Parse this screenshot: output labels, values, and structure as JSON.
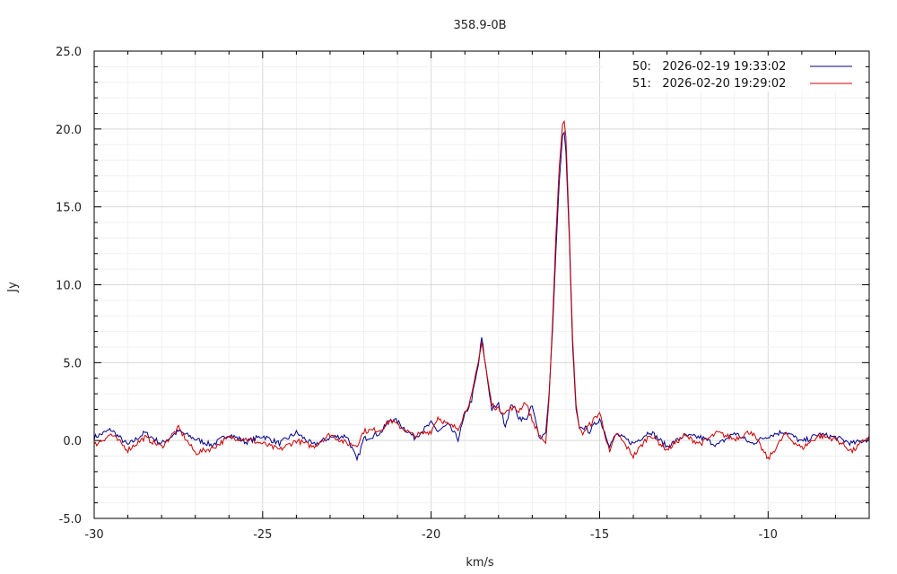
{
  "chart_data": {
    "type": "line",
    "title": "358.9-0B",
    "xlabel": "km/s",
    "ylabel": "Jy",
    "xlim": [
      -30,
      -7
    ],
    "ylim": [
      -5,
      25
    ],
    "x_ticks": [
      -30,
      -25,
      -20,
      -15,
      -10
    ],
    "x_tick_labels": [
      "-30",
      "-25",
      "-20",
      "-15",
      "-10"
    ],
    "y_ticks": [
      -5,
      0,
      5,
      10,
      15,
      20,
      25
    ],
    "y_tick_labels": [
      "-5.0",
      "0.0",
      "5.0",
      "10.0",
      "15.0",
      "20.0",
      "25.0"
    ],
    "grid": true,
    "legend_position": "top-right",
    "series": [
      {
        "name": "50:   2026-02-19 19:33:02",
        "color": "#00008b",
        "x": [
          -30.0,
          -29.5,
          -29.0,
          -28.5,
          -28.0,
          -27.5,
          -27.0,
          -26.5,
          -26.0,
          -25.5,
          -25.0,
          -24.5,
          -24.0,
          -23.5,
          -23.0,
          -22.5,
          -22.2,
          -22.0,
          -21.5,
          -21.2,
          -21.0,
          -20.5,
          -20.0,
          -19.8,
          -19.5,
          -19.2,
          -19.0,
          -18.8,
          -18.6,
          -18.5,
          -18.3,
          -18.2,
          -18.0,
          -17.8,
          -17.6,
          -17.4,
          -17.2,
          -17.0,
          -16.8,
          -16.6,
          -16.5,
          -16.4,
          -16.3,
          -16.2,
          -16.1,
          -16.05,
          -16.0,
          -15.9,
          -15.8,
          -15.7,
          -15.6,
          -15.5,
          -15.3,
          -15.0,
          -14.7,
          -14.5,
          -14.0,
          -13.5,
          -13.0,
          -12.5,
          -12.0,
          -11.5,
          -11.0,
          -10.5,
          -10.0,
          -9.5,
          -9.0,
          -8.5,
          -8.0,
          -7.5,
          -7.0
        ],
        "y": [
          0.2,
          0.7,
          -0.3,
          0.5,
          -0.2,
          0.6,
          0.1,
          -0.3,
          0.4,
          -0.1,
          0.3,
          -0.2,
          0.5,
          -0.3,
          0.2,
          0.3,
          -1.3,
          0.1,
          0.5,
          1.4,
          1.2,
          0.2,
          1.1,
          0.6,
          1.0,
          0.1,
          1.6,
          2.6,
          4.8,
          6.6,
          3.5,
          2.0,
          2.3,
          1.0,
          2.4,
          1.5,
          1.3,
          2.2,
          0.2,
          0.5,
          3.0,
          7.0,
          12.0,
          16.5,
          19.6,
          19.8,
          18.5,
          13.0,
          6.0,
          2.0,
          0.8,
          0.9,
          0.6,
          1.4,
          -0.3,
          0.4,
          -0.2,
          0.6,
          -0.4,
          0.3,
          0.2,
          -0.3,
          0.5,
          -0.2,
          0.3,
          0.6,
          -0.1,
          0.4,
          0.2,
          -0.2,
          0.1
        ]
      },
      {
        "name": "51:   2026-02-20 19:29:02",
        "color": "#cc0000",
        "x": [
          -30.0,
          -29.5,
          -29.0,
          -28.5,
          -28.0,
          -27.5,
          -27.0,
          -26.5,
          -26.0,
          -25.5,
          -25.0,
          -24.5,
          -24.0,
          -23.5,
          -23.0,
          -22.5,
          -22.2,
          -22.0,
          -21.5,
          -21.2,
          -21.0,
          -20.5,
          -20.0,
          -19.8,
          -19.5,
          -19.2,
          -19.0,
          -18.8,
          -18.6,
          -18.5,
          -18.3,
          -18.2,
          -18.0,
          -17.8,
          -17.6,
          -17.4,
          -17.2,
          -17.0,
          -16.8,
          -16.6,
          -16.5,
          -16.4,
          -16.3,
          -16.2,
          -16.1,
          -16.05,
          -16.0,
          -15.9,
          -15.8,
          -15.7,
          -15.6,
          -15.5,
          -15.3,
          -15.0,
          -14.7,
          -14.5,
          -14.0,
          -13.5,
          -13.0,
          -12.5,
          -12.0,
          -11.5,
          -11.0,
          -10.5,
          -10.0,
          -9.5,
          -9.0,
          -8.5,
          -8.0,
          -7.5,
          -7.0
        ],
        "y": [
          -0.3,
          0.4,
          -0.6,
          0.2,
          -0.4,
          0.8,
          -0.8,
          -0.5,
          0.2,
          0.1,
          -0.2,
          -0.6,
          0.0,
          -0.4,
          0.4,
          -0.2,
          -0.3,
          0.6,
          0.7,
          1.3,
          1.0,
          0.3,
          0.6,
          1.5,
          1.0,
          0.8,
          1.8,
          2.8,
          5.0,
          6.4,
          3.6,
          2.3,
          2.0,
          1.8,
          2.1,
          1.9,
          2.5,
          1.3,
          0.4,
          -0.2,
          2.7,
          7.5,
          13.0,
          17.5,
          20.3,
          20.5,
          19.5,
          13.5,
          6.5,
          2.3,
          0.8,
          0.5,
          1.0,
          1.8,
          -0.8,
          0.5,
          -1.0,
          0.4,
          -0.6,
          0.3,
          -0.2,
          0.5,
          0.1,
          0.6,
          -1.2,
          0.4,
          -0.5,
          0.3,
          0.1,
          -0.7,
          0.3
        ]
      }
    ]
  }
}
